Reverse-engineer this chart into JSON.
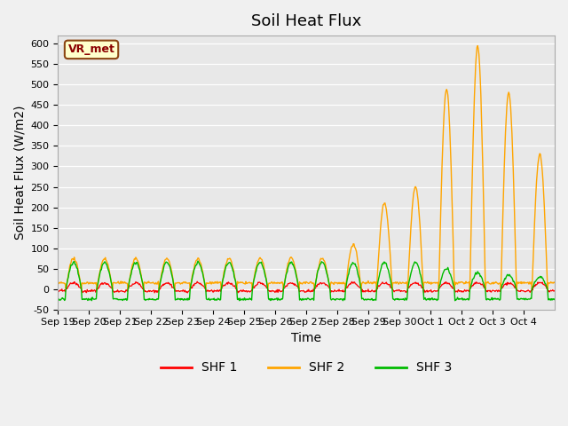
{
  "title": "Soil Heat Flux",
  "ylabel": "Soil Heat Flux (W/m2)",
  "xlabel": "Time",
  "ylim": [
    -50,
    620
  ],
  "yticks": [
    -50,
    0,
    50,
    100,
    150,
    200,
    250,
    300,
    350,
    400,
    450,
    500,
    550,
    600
  ],
  "xtick_labels": [
    "Sep 19",
    "Sep 20",
    "Sep 21",
    "Sep 22",
    "Sep 23",
    "Sep 24",
    "Sep 25",
    "Sep 26",
    "Sep 27",
    "Sep 28",
    "Sep 29",
    "Sep 30",
    "Oct 1",
    "Oct 2",
    "Oct 3",
    "Oct 4"
  ],
  "legend_label": "VR_met",
  "series_labels": [
    "SHF 1",
    "SHF 2",
    "SHF 3"
  ],
  "colors": [
    "#ff0000",
    "#ffa500",
    "#00bb00"
  ],
  "background_color": "#e8e8e8",
  "fig_background": "#f0f0f0",
  "title_fontsize": 13,
  "axis_fontsize": 10,
  "tick_fontsize": 8
}
